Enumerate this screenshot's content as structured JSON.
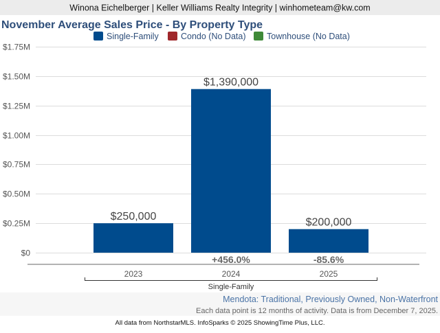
{
  "header": {
    "agent_line": "Winona Eichelberger | Keller Williams Realty Integrity | winhometeam@kw.com"
  },
  "chart_data": {
    "type": "bar",
    "title": "November Average Sales Price - By Property Type",
    "legend": [
      {
        "name": "Single-Family",
        "color": "#004b8d"
      },
      {
        "name": "Condo (No Data)",
        "color": "#a0282b"
      },
      {
        "name": "Townhouse (No Data)",
        "color": "#3f8a38"
      }
    ],
    "legend_position": "top",
    "categories": [
      "2023",
      "2024",
      "2025"
    ],
    "group_label": "Single-Family",
    "series": [
      {
        "name": "Single-Family",
        "values": [
          250000,
          1390000,
          200000
        ],
        "color": "#004b8d"
      }
    ],
    "data_labels": [
      "$250,000",
      "$1,390,000",
      "$200,000"
    ],
    "change_labels": [
      "",
      "+456.0%",
      "-85.6%"
    ],
    "ylim": [
      0,
      1750000
    ],
    "yticks": [
      0,
      250000,
      500000,
      750000,
      1000000,
      1250000,
      1500000,
      1750000
    ],
    "ytick_labels": [
      "$0",
      "$0.25M",
      "$0.50M",
      "$0.75M",
      "$1.00M",
      "$1.25M",
      "$1.50M",
      "$1.75M"
    ],
    "grid": true
  },
  "footer": {
    "area": "Mendota: Traditional, Previously Owned, Non-Waterfront",
    "note": "Each data point is 12 months of activity. Data is from December 7, 2025.",
    "source": "All data from NorthstarMLS. InfoSparks © 2025 ShowingTime Plus, LLC."
  }
}
